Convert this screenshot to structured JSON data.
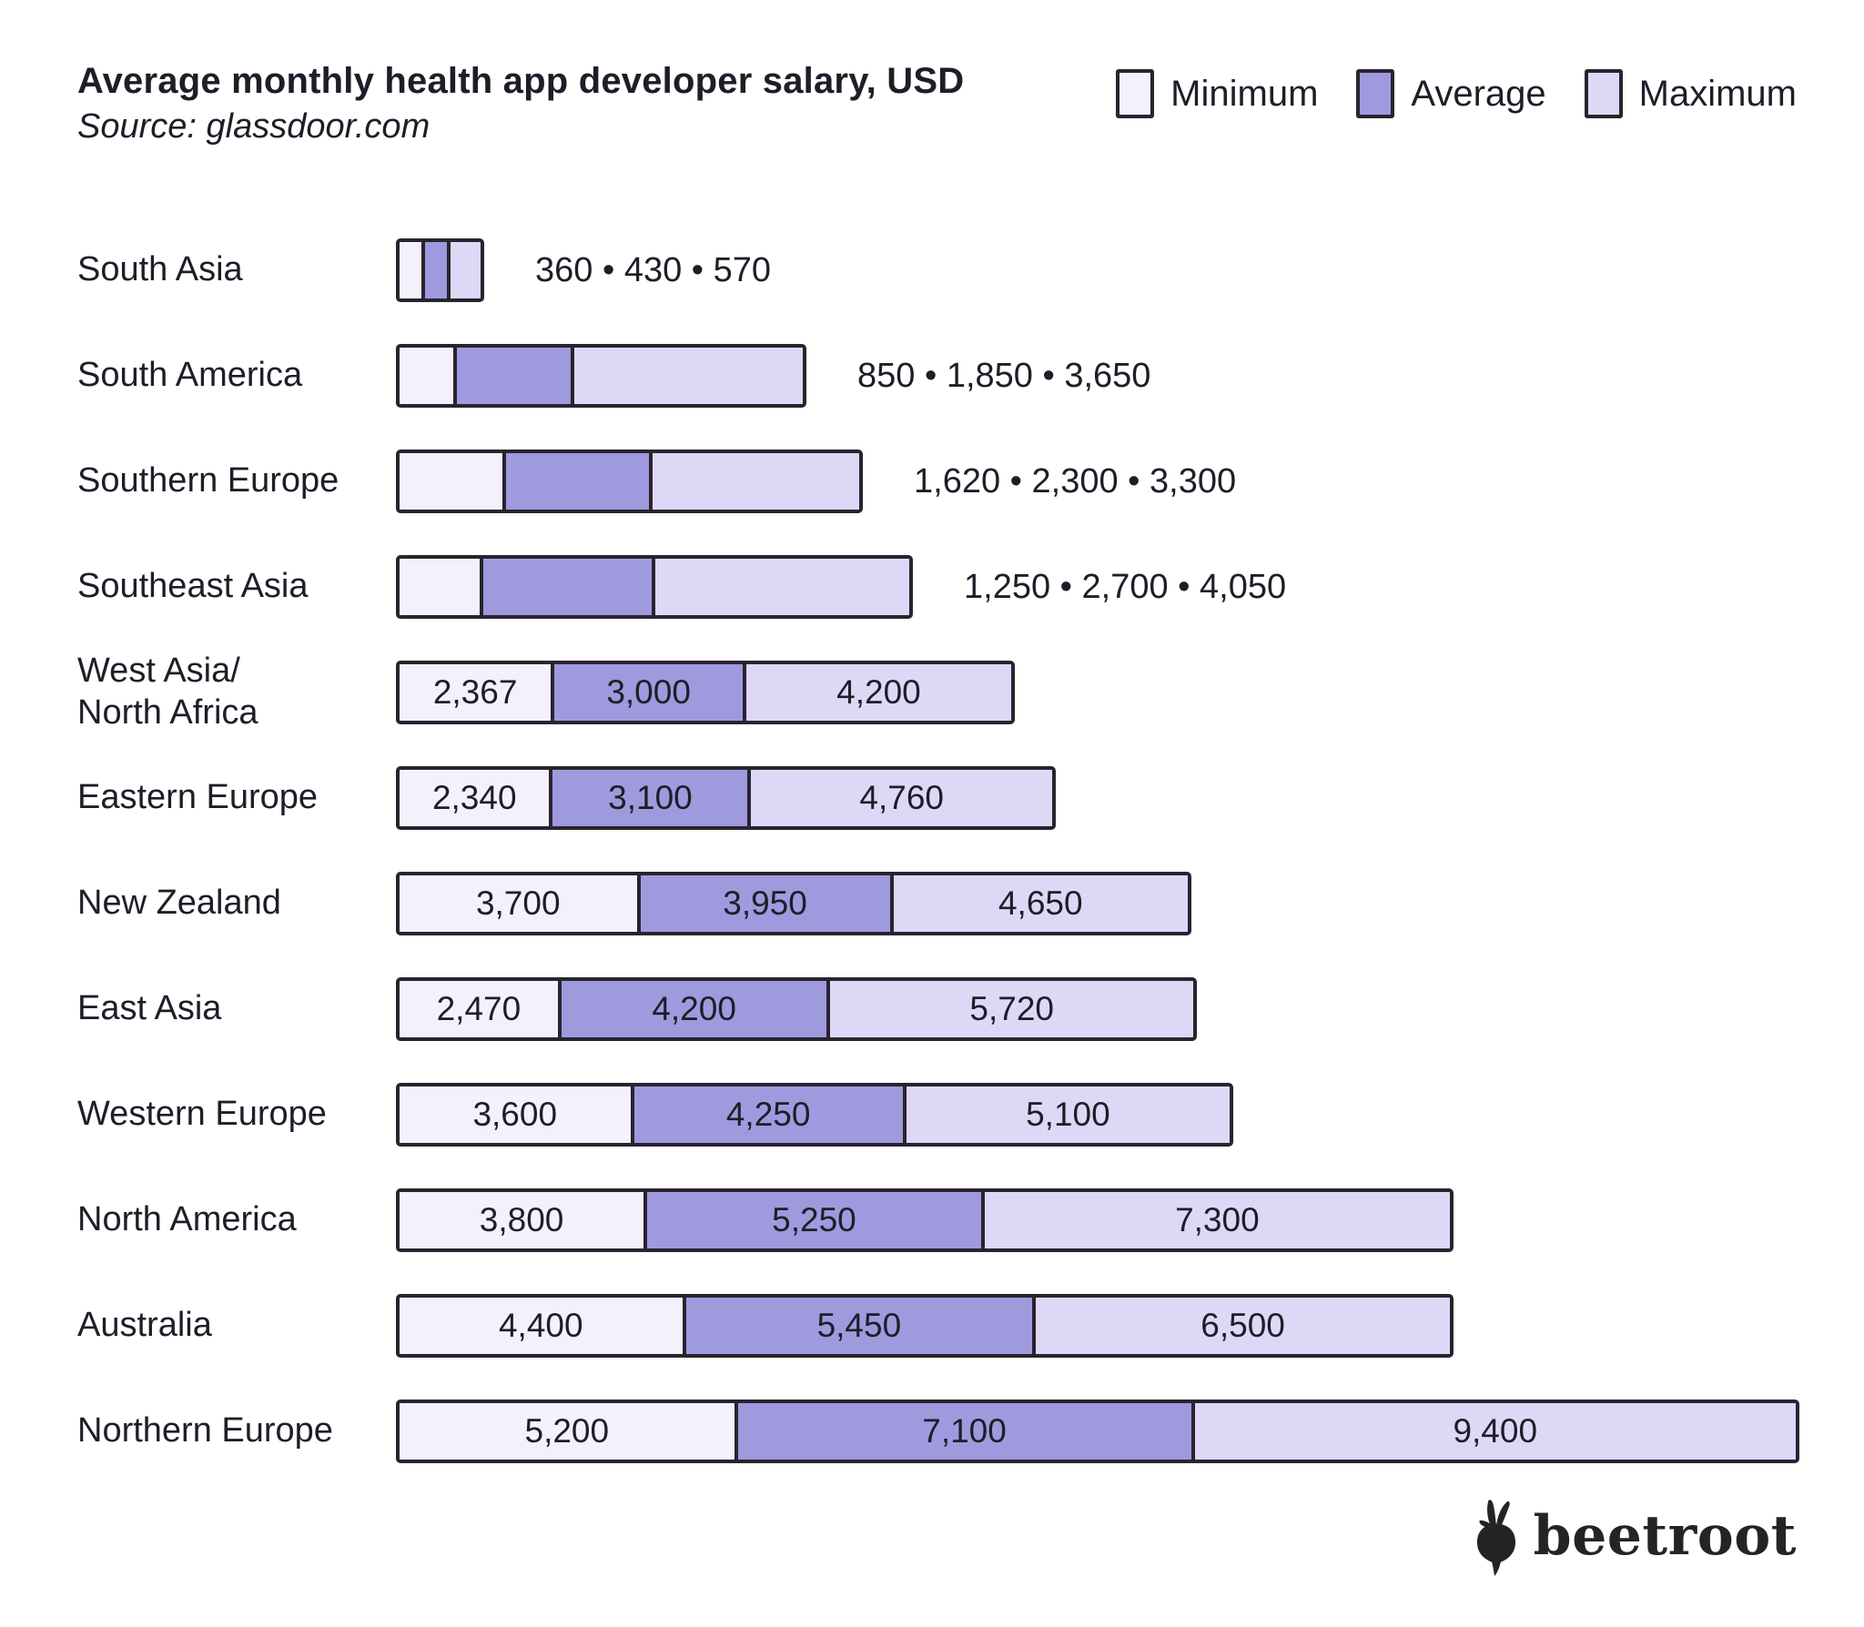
{
  "title": "Average monthly health app developer salary, USD",
  "source": "Source: glassdoor.com",
  "legend": [
    {
      "label": "Minimum",
      "key": "min"
    },
    {
      "label": "Average",
      "key": "avg"
    },
    {
      "label": "Maximum",
      "key": "max"
    }
  ],
  "colors": {
    "min": "#f5f1fc",
    "avg": "#9f9ade",
    "max": "#ded8f7",
    "line": "#28242f",
    "text": "#1e1d28",
    "brand": "#242424"
  },
  "brand": {
    "wordmark": "beetroot",
    "icon": "beet-icon"
  },
  "chart_data": {
    "type": "bar",
    "variant": "horizontal-stacked",
    "title": "Average monthly health app developer salary, USD",
    "source": "Source: glassdoor.com",
    "unit": "USD per month",
    "legend_position": "top-right",
    "grid": false,
    "categories": [
      "South Asia",
      "South America",
      "Southern Europe",
      "Southeast Asia",
      "West Asia/ North Africa",
      "Eastern Europe",
      "New Zealand",
      "East Asia",
      "Western Europe",
      "North America",
      "Australia",
      "Northern Europe"
    ],
    "series": [
      {
        "name": "Minimum",
        "values": [
          360,
          850,
          1620,
          1250,
          2367,
          2340,
          3700,
          2470,
          3600,
          3800,
          4400,
          5200
        ]
      },
      {
        "name": "Average",
        "values": [
          430,
          1850,
          2300,
          2700,
          3000,
          3100,
          3950,
          4200,
          4250,
          5250,
          5450,
          7100
        ]
      },
      {
        "name": "Maximum",
        "values": [
          570,
          3650,
          3300,
          4050,
          4200,
          4760,
          4650,
          5720,
          5100,
          7300,
          6500,
          9400
        ]
      }
    ],
    "rows": [
      {
        "region": "South Asia",
        "region_lines": [
          "South Asia"
        ],
        "min": 360,
        "avg": 430,
        "max": 570,
        "labels": [
          "360",
          "430",
          "570"
        ],
        "values_position": "outside",
        "display": "360 • 430 • 570"
      },
      {
        "region": "South America",
        "region_lines": [
          "South America"
        ],
        "min": 850,
        "avg": 1850,
        "max": 3650,
        "labels": [
          "850",
          "1,850",
          "3,650"
        ],
        "values_position": "outside",
        "display": "850 • 1,850 • 3,650"
      },
      {
        "region": "Southern Europe",
        "region_lines": [
          "Southern Europe"
        ],
        "min": 1620,
        "avg": 2300,
        "max": 3300,
        "labels": [
          "1,620",
          "2,300",
          "3,300"
        ],
        "values_position": "outside",
        "display": "1,620 • 2,300 • 3,300"
      },
      {
        "region": "Southeast Asia",
        "region_lines": [
          "Southeast Asia"
        ],
        "min": 1250,
        "avg": 2700,
        "max": 4050,
        "labels": [
          "1,250",
          "2,700",
          "4,050"
        ],
        "values_position": "outside",
        "display": "1,250 • 2,700 • 4,050"
      },
      {
        "region": "West Asia/ North Africa",
        "region_lines": [
          "West Asia/",
          "North Africa"
        ],
        "min": 2367,
        "avg": 3000,
        "max": 4200,
        "labels": [
          "2,367",
          "3,000",
          "4,200"
        ],
        "values_position": "inside"
      },
      {
        "region": "Eastern Europe",
        "region_lines": [
          "Eastern Europe"
        ],
        "min": 2340,
        "avg": 3100,
        "max": 4760,
        "labels": [
          "2,340",
          "3,100",
          "4,760"
        ],
        "values_position": "inside"
      },
      {
        "region": "New Zealand",
        "region_lines": [
          "New Zealand"
        ],
        "min": 3700,
        "avg": 3950,
        "max": 4650,
        "labels": [
          "3,700",
          "3,950",
          "4,650"
        ],
        "values_position": "inside"
      },
      {
        "region": "East Asia",
        "region_lines": [
          "East Asia"
        ],
        "min": 2470,
        "avg": 4200,
        "max": 5720,
        "labels": [
          "2,470",
          "4,200",
          "5,720"
        ],
        "values_position": "inside"
      },
      {
        "region": "Western Europe",
        "region_lines": [
          "Western Europe"
        ],
        "min": 3600,
        "avg": 4250,
        "max": 5100,
        "labels": [
          "3,600",
          "4,250",
          "5,100"
        ],
        "values_position": "inside"
      },
      {
        "region": "North America",
        "region_lines": [
          "North America"
        ],
        "min": 3800,
        "avg": 5250,
        "max": 7300,
        "labels": [
          "3,800",
          "5,250",
          "7,300"
        ],
        "values_position": "inside"
      },
      {
        "region": "Australia",
        "region_lines": [
          "Australia"
        ],
        "min": 4400,
        "avg": 5450,
        "max": 6500,
        "labels": [
          "4,400",
          "5,450",
          "6,500"
        ],
        "values_position": "inside"
      },
      {
        "region": "Northern Europe",
        "region_lines": [
          "Northern Europe"
        ],
        "min": 5200,
        "avg": 7100,
        "max": 9400,
        "labels": [
          "5,200",
          "7,100",
          "9,400"
        ],
        "values_position": "inside"
      }
    ]
  }
}
